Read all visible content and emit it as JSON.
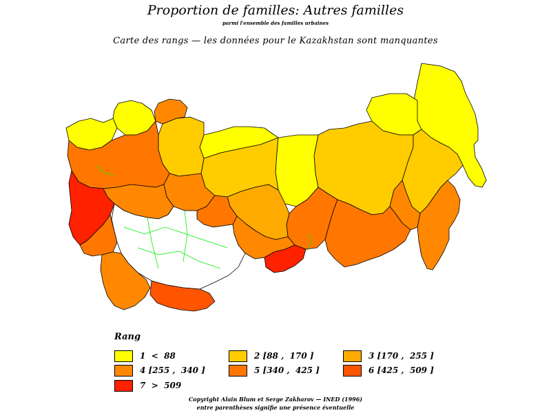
{
  "header": {
    "title": "Proportion de familles: Autres familles",
    "subtitle": "parmi l'ensemble des familles urbaines",
    "note": "Carte des  rangs — les données pour le Kazakhstan sont manquantes"
  },
  "colors": {
    "class1": "#ffff00",
    "class2": "#ffcc00",
    "class3": "#ffaa00",
    "class4": "#ff8800",
    "class5": "#ff7700",
    "class6": "#ff5500",
    "class7": "#ff2200",
    "missing": "#ffffff",
    "boundary": "#000000",
    "internal_boundary": "#00ee00"
  },
  "legend": {
    "title": "Rang",
    "items": [
      {
        "label": "1  <  88",
        "color_key": "class1"
      },
      {
        "label": "2 [88 ,  170 ]",
        "color_key": "class2"
      },
      {
        "label": "3 [170 ,  255 ]",
        "color_key": "class3"
      },
      {
        "label": "4 [255 ,  340 ]",
        "color_key": "class4"
      },
      {
        "label": "5 [340 ,  425 ]",
        "color_key": "class5"
      },
      {
        "label": "6 [425 ,  509 ]",
        "color_key": "class6"
      },
      {
        "label": "7  >  509",
        "color_key": "class7"
      }
    ]
  },
  "footer": {
    "copyright": "Copyright Alain Blum et Serge Zakharov — INED (1996)",
    "note": "entre parenthèses signifie une présence éventuelle"
  }
}
